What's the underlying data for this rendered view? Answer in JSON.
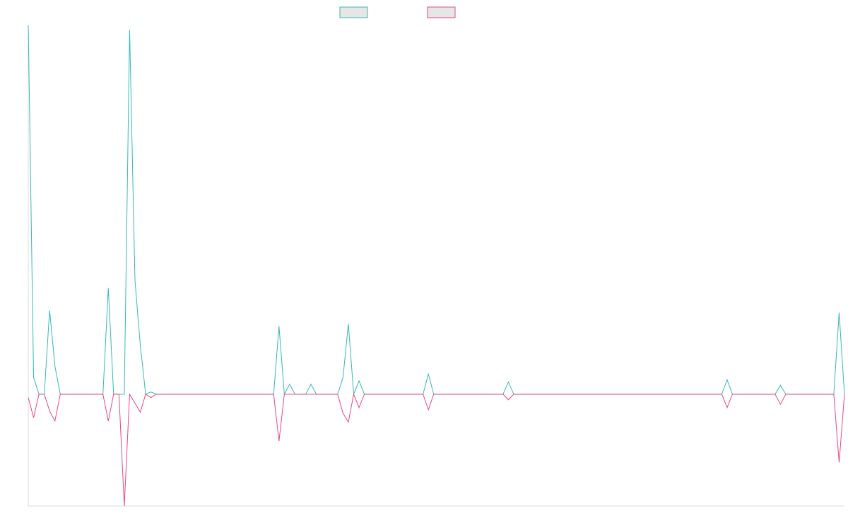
{
  "colors": {
    "series_a": "#36b9b6",
    "series_b": "#f0467a",
    "legend_fill": "#e6e6e6",
    "axis": "#dddddd"
  },
  "chart_data": {
    "type": "line",
    "title": "",
    "xlabel": "",
    "ylabel": "",
    "legend_position": "top-center",
    "grid": false,
    "ylim": [
      -100,
      330
    ],
    "x": [
      0,
      1,
      2,
      3,
      4,
      5,
      6,
      7,
      8,
      9,
      10,
      11,
      12,
      13,
      14,
      15,
      16,
      17,
      18,
      19,
      20,
      21,
      22,
      23,
      24,
      25,
      26,
      27,
      28,
      29,
      30,
      31,
      32,
      33,
      34,
      35,
      36,
      37,
      38,
      39,
      40,
      41,
      42,
      43,
      44,
      45,
      46,
      47,
      48,
      49,
      50,
      51,
      52,
      53,
      54,
      55,
      56,
      57,
      58,
      59,
      60,
      61,
      62,
      63,
      64,
      65,
      66,
      67,
      68,
      69,
      70,
      71,
      72,
      73,
      74,
      75,
      76,
      77,
      78,
      79,
      80,
      81,
      82,
      83,
      84,
      85,
      86,
      87,
      88,
      89,
      90,
      91,
      92,
      93,
      94,
      95,
      96,
      97,
      98,
      99,
      100,
      101,
      102,
      103,
      104,
      105,
      106,
      107,
      108,
      109,
      110,
      111,
      112,
      113,
      114,
      115,
      116,
      117,
      118,
      119,
      120,
      121,
      122,
      123,
      124,
      125,
      126,
      127,
      128,
      129,
      130,
      131,
      132,
      133,
      134,
      135,
      136,
      137,
      138,
      139,
      140,
      141,
      142,
      143,
      144,
      145,
      146,
      147,
      148,
      149,
      150,
      151,
      152,
      153
    ],
    "series": [
      {
        "values": [
          330,
          15,
          0,
          0,
          75,
          25,
          0,
          0,
          0,
          0,
          0,
          0,
          0,
          0,
          0,
          95,
          0,
          0,
          0,
          326,
          102,
          44,
          0,
          2,
          0,
          0,
          0,
          0,
          0,
          0,
          0,
          0,
          0,
          0,
          0,
          0,
          0,
          0,
          0,
          0,
          0,
          0,
          0,
          0,
          0,
          0,
          0,
          61,
          0,
          9,
          0,
          0,
          0,
          9,
          0,
          0,
          0,
          0,
          0,
          15,
          63,
          0,
          12,
          0,
          0,
          0,
          0,
          0,
          0,
          0,
          0,
          0,
          0,
          0,
          0,
          18,
          0,
          0,
          0,
          0,
          0,
          0,
          0,
          0,
          0,
          0,
          0,
          0,
          0,
          0,
          11,
          0,
          0,
          0,
          0,
          0,
          0,
          0,
          0,
          0,
          0,
          0,
          0,
          0,
          0,
          0,
          0,
          0,
          0,
          0,
          0,
          0,
          0,
          0,
          0,
          0,
          0,
          0,
          0,
          0,
          0,
          0,
          0,
          0,
          0,
          0,
          0,
          0,
          0,
          0,
          0,
          13,
          0,
          0,
          0,
          0,
          0,
          0,
          0,
          0,
          0,
          8,
          0,
          0,
          0,
          0,
          0,
          0,
          0,
          0,
          0,
          0,
          73,
          0
        ]
      },
      {
        "values": [
          -3,
          -21,
          0,
          0,
          -15,
          -24,
          0,
          0,
          0,
          0,
          0,
          0,
          0,
          0,
          0,
          -24,
          0,
          0,
          -100,
          0,
          -8,
          -16,
          0,
          -3,
          0,
          0,
          0,
          0,
          0,
          0,
          0,
          0,
          0,
          0,
          0,
          0,
          0,
          0,
          0,
          0,
          0,
          0,
          0,
          0,
          0,
          0,
          0,
          -42,
          0,
          0,
          0,
          0,
          0,
          0,
          0,
          0,
          0,
          0,
          0,
          -17,
          -25,
          0,
          -12,
          0,
          0,
          0,
          0,
          0,
          0,
          0,
          0,
          0,
          0,
          0,
          0,
          -14,
          0,
          0,
          0,
          0,
          0,
          0,
          0,
          0,
          0,
          0,
          0,
          0,
          0,
          0,
          -5,
          0,
          0,
          0,
          0,
          0,
          0,
          0,
          0,
          0,
          0,
          0,
          0,
          0,
          0,
          0,
          0,
          0,
          0,
          0,
          0,
          0,
          0,
          0,
          0,
          0,
          0,
          0,
          0,
          0,
          0,
          0,
          0,
          0,
          0,
          0,
          0,
          0,
          0,
          0,
          0,
          -12,
          0,
          0,
          0,
          0,
          0,
          0,
          0,
          0,
          0,
          -9,
          0,
          0,
          0,
          0,
          0,
          0,
          0,
          0,
          0,
          0,
          -61,
          0
        ]
      }
    ]
  }
}
